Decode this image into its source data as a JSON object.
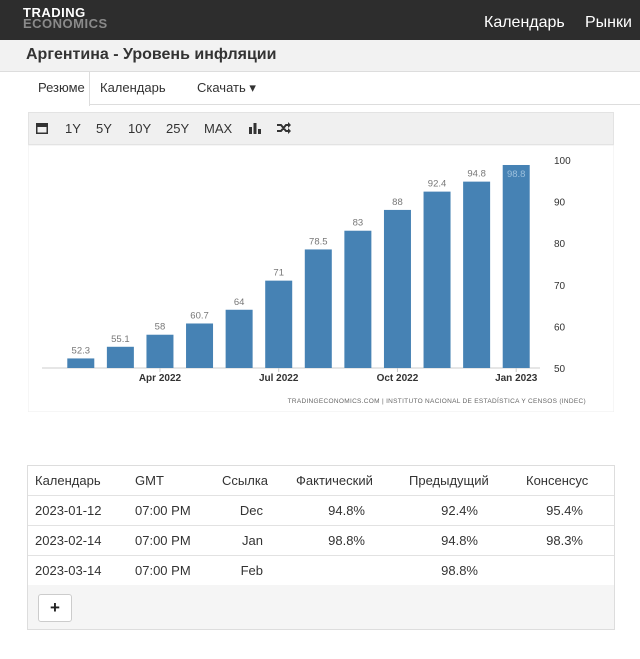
{
  "header": {
    "logo_top": "TRADING",
    "logo_bottom": "ECONOMICS",
    "nav": [
      "Календарь",
      "Рынки"
    ]
  },
  "page_title": "Аргентина - Уровень инфляции",
  "tabs": [
    "Резюме",
    "Календарь",
    "Скачать ▾"
  ],
  "toolbar": [
    "1Y",
    "5Y",
    "10Y",
    "25Y",
    "MAX"
  ],
  "chart_data": {
    "type": "bar",
    "categories": [
      null,
      null,
      "Apr 2022",
      null,
      null,
      "Jul 2022",
      null,
      null,
      "Oct 2022",
      null,
      null,
      "Jan 2023"
    ],
    "values": [
      52.3,
      55.1,
      58,
      60.7,
      64,
      71,
      78.5,
      83,
      88,
      92.4,
      94.8,
      98.8
    ],
    "color": "#4682b4",
    "ylim": [
      50,
      100
    ],
    "yticks": [
      50,
      60,
      70,
      80,
      90,
      100
    ],
    "grid": false,
    "source": "TRADINGECONOMICS.COM | INSTITUTO NACIONAL DE ESTADÍSTICA Y CENSOS (INDEC)"
  },
  "table": {
    "columns": [
      "Календарь",
      "GMT",
      "Ссылка",
      "Фактический",
      "Предыдущий",
      "Консенсус"
    ],
    "rows": [
      [
        "2023-01-12",
        "07:00 PM",
        "Dec",
        "94.8%",
        "92.4%",
        "95.4%"
      ],
      [
        "2023-02-14",
        "07:00 PM",
        "Jan",
        "98.8%",
        "94.8%",
        "98.3%"
      ],
      [
        "2023-03-14",
        "07:00 PM",
        "Feb",
        null,
        "98.8%",
        null
      ]
    ],
    "button": "+"
  }
}
